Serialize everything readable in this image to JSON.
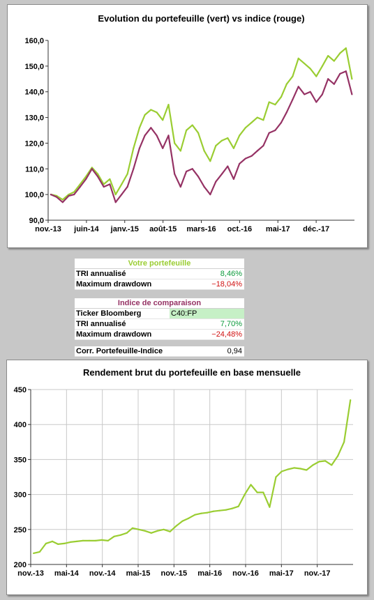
{
  "chart_data": [
    {
      "type": "line",
      "title": "Evolution du portefeuille (vert) vs indice (rouge)",
      "ylim": [
        90,
        160
      ],
      "yticks": [
        "90,0",
        "100,0",
        "110,0",
        "120,0",
        "130,0",
        "140,0",
        "150,0",
        "160,0"
      ],
      "xticks": [
        "nov.-13",
        "juin-14",
        "janv.-15",
        "août-15",
        "mars-16",
        "oct.-16",
        "mai-17",
        "déc.-17"
      ],
      "x_start": "2013-11-01",
      "x_end": "2018-02-28",
      "grid": false,
      "series": [
        {
          "color": "#9acd32",
          "points": [
            [
              "2013-11",
              100.0
            ],
            [
              "2013-12",
              99.5
            ],
            [
              "2014-01",
              98.0
            ],
            [
              "2014-02",
              100.0
            ],
            [
              "2014-03",
              101.0
            ],
            [
              "2014-04",
              104.0
            ],
            [
              "2014-05",
              107.0
            ],
            [
              "2014-06",
              110.5
            ],
            [
              "2014-07",
              108.0
            ],
            [
              "2014-08",
              104.0
            ],
            [
              "2014-09",
              106.0
            ],
            [
              "2014-10",
              100.0
            ],
            [
              "2014-11",
              104.0
            ],
            [
              "2014-12",
              108.0
            ],
            [
              "2015-01",
              118.0
            ],
            [
              "2015-02",
              126.0
            ],
            [
              "2015-03",
              131.0
            ],
            [
              "2015-04",
              133.0
            ],
            [
              "2015-05",
              132.0
            ],
            [
              "2015-06",
              129.0
            ],
            [
              "2015-07",
              135.0
            ],
            [
              "2015-08",
              120.0
            ],
            [
              "2015-09",
              117.0
            ],
            [
              "2015-10",
              125.0
            ],
            [
              "2015-11",
              127.0
            ],
            [
              "2015-12",
              124.0
            ],
            [
              "2016-01",
              117.0
            ],
            [
              "2016-02",
              113.0
            ],
            [
              "2016-03",
              119.0
            ],
            [
              "2016-04",
              121.0
            ],
            [
              "2016-05",
              122.0
            ],
            [
              "2016-06",
              118.0
            ],
            [
              "2016-07",
              123.0
            ],
            [
              "2016-08",
              126.0
            ],
            [
              "2016-09",
              128.0
            ],
            [
              "2016-10",
              130.0
            ],
            [
              "2016-11",
              129.0
            ],
            [
              "2016-12",
              136.0
            ],
            [
              "2017-01",
              135.0
            ],
            [
              "2017-02",
              138.0
            ],
            [
              "2017-03",
              143.0
            ],
            [
              "2017-04",
              146.0
            ],
            [
              "2017-05",
              153.0
            ],
            [
              "2017-06",
              151.0
            ],
            [
              "2017-07",
              149.0
            ],
            [
              "2017-08",
              146.0
            ],
            [
              "2017-09",
              150.0
            ],
            [
              "2017-10",
              154.0
            ],
            [
              "2017-11",
              152.0
            ],
            [
              "2017-12",
              155.0
            ],
            [
              "2018-01",
              157.0
            ],
            [
              "2018-02",
              145.0
            ]
          ]
        },
        {
          "color": "#953264",
          "points": [
            [
              "2013-11",
              100.0
            ],
            [
              "2013-12",
              99.0
            ],
            [
              "2014-01",
              97.0
            ],
            [
              "2014-02",
              99.5
            ],
            [
              "2014-03",
              100.0
            ],
            [
              "2014-04",
              103.0
            ],
            [
              "2014-05",
              106.0
            ],
            [
              "2014-06",
              110.0
            ],
            [
              "2014-07",
              107.0
            ],
            [
              "2014-08",
              103.0
            ],
            [
              "2014-09",
              104.0
            ],
            [
              "2014-10",
              97.0
            ],
            [
              "2014-11",
              100.0
            ],
            [
              "2014-12",
              103.0
            ],
            [
              "2015-01",
              110.0
            ],
            [
              "2015-02",
              118.0
            ],
            [
              "2015-03",
              123.0
            ],
            [
              "2015-04",
              126.0
            ],
            [
              "2015-05",
              123.0
            ],
            [
              "2015-06",
              118.0
            ],
            [
              "2015-07",
              123.0
            ],
            [
              "2015-08",
              108.0
            ],
            [
              "2015-09",
              103.0
            ],
            [
              "2015-10",
              109.0
            ],
            [
              "2015-11",
              110.0
            ],
            [
              "2015-12",
              107.0
            ],
            [
              "2016-01",
              103.0
            ],
            [
              "2016-02",
              100.0
            ],
            [
              "2016-03",
              105.0
            ],
            [
              "2016-04",
              108.0
            ],
            [
              "2016-05",
              111.0
            ],
            [
              "2016-06",
              106.0
            ],
            [
              "2016-07",
              112.0
            ],
            [
              "2016-08",
              114.0
            ],
            [
              "2016-09",
              115.0
            ],
            [
              "2016-10",
              117.0
            ],
            [
              "2016-11",
              119.0
            ],
            [
              "2016-12",
              124.0
            ],
            [
              "2017-01",
              125.0
            ],
            [
              "2017-02",
              128.0
            ],
            [
              "2017-03",
              132.0
            ],
            [
              "2017-04",
              137.0
            ],
            [
              "2017-05",
              142.0
            ],
            [
              "2017-06",
              139.0
            ],
            [
              "2017-07",
              140.0
            ],
            [
              "2017-08",
              136.0
            ],
            [
              "2017-09",
              139.0
            ],
            [
              "2017-10",
              145.0
            ],
            [
              "2017-11",
              143.0
            ],
            [
              "2017-12",
              147.0
            ],
            [
              "2018-01",
              148.0
            ],
            [
              "2018-02",
              139.0
            ]
          ]
        }
      ]
    },
    {
      "type": "line",
      "title": "Rendement brut du portefeuille en base mensuelle",
      "ylim": [
        200,
        450
      ],
      "yticks": [
        "200",
        "250",
        "300",
        "350",
        "400",
        "450"
      ],
      "xticks": [
        "nov.-13",
        "mai-14",
        "nov.-14",
        "mai-15",
        "nov.-15",
        "mai-16",
        "nov.-16",
        "mai-17",
        "nov.-17"
      ],
      "x_start": "2013-11-01",
      "x_end": "2018-02-28",
      "grid": true,
      "series": [
        {
          "color": "#9acd32",
          "points": [
            [
              "2013-11",
              216
            ],
            [
              "2013-12",
              218
            ],
            [
              "2014-01",
              230
            ],
            [
              "2014-02",
              233
            ],
            [
              "2014-03",
              229
            ],
            [
              "2014-04",
              230
            ],
            [
              "2014-05",
              232
            ],
            [
              "2014-06",
              233
            ],
            [
              "2014-07",
              234
            ],
            [
              "2014-08",
              234
            ],
            [
              "2014-09",
              234
            ],
            [
              "2014-10",
              235
            ],
            [
              "2014-11",
              234
            ],
            [
              "2014-12",
              240
            ],
            [
              "2015-01",
              242
            ],
            [
              "2015-02",
              245
            ],
            [
              "2015-03",
              252
            ],
            [
              "2015-04",
              250
            ],
            [
              "2015-05",
              248
            ],
            [
              "2015-06",
              245
            ],
            [
              "2015-07",
              248
            ],
            [
              "2015-08",
              250
            ],
            [
              "2015-09",
              247
            ],
            [
              "2015-10",
              255
            ],
            [
              "2015-11",
              262
            ],
            [
              "2015-12",
              266
            ],
            [
              "2016-01",
              271
            ],
            [
              "2016-02",
              273
            ],
            [
              "2016-03",
              274
            ],
            [
              "2016-04",
              276
            ],
            [
              "2016-05",
              277
            ],
            [
              "2016-06",
              278
            ],
            [
              "2016-07",
              280
            ],
            [
              "2016-08",
              283
            ],
            [
              "2016-09",
              300
            ],
            [
              "2016-10",
              314
            ],
            [
              "2016-11",
              303
            ],
            [
              "2016-12",
              303
            ],
            [
              "2017-01",
              282
            ],
            [
              "2017-02",
              325
            ],
            [
              "2017-03",
              333
            ],
            [
              "2017-04",
              336
            ],
            [
              "2017-05",
              338
            ],
            [
              "2017-06",
              337
            ],
            [
              "2017-07",
              335
            ],
            [
              "2017-08",
              342
            ],
            [
              "2017-09",
              347
            ],
            [
              "2017-10",
              348
            ],
            [
              "2017-11",
              342
            ],
            [
              "2017-12",
              355
            ],
            [
              "2018-01",
              375
            ],
            [
              "2018-02",
              435
            ]
          ]
        }
      ]
    }
  ],
  "stats": {
    "portfolio_header": "Votre portefeuille",
    "tri_label": "TRI annualisé",
    "portfolio_tri": "8,46%",
    "maxdd_label": "Maximum drawdown",
    "portfolio_maxdd": "−18,04%",
    "index_header": "Indice de comparaison",
    "ticker_label": "Ticker Bloomberg",
    "ticker_value": "C40:FP",
    "index_tri": "7,70%",
    "index_maxdd": "−24,48%",
    "corr_label": "Corr. Portefeuille-Indice",
    "corr_value": "0,94"
  }
}
